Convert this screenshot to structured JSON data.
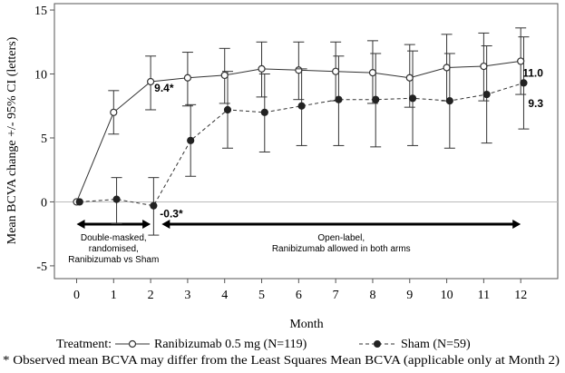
{
  "chart_data": {
    "type": "line",
    "ylabel": "Mean BCVA change +/- 95% CI (letters)",
    "xlabel": "Month",
    "x": [
      0,
      1,
      2,
      3,
      4,
      5,
      6,
      7,
      8,
      9,
      10,
      11,
      12
    ],
    "xlim": [
      -0.6,
      13.0
    ],
    "ylim": [
      -6.0,
      15.5
    ],
    "y_ticks": [
      15,
      10,
      5,
      0,
      -5
    ],
    "zero_line": true,
    "series": [
      {
        "name": "Ranibizumab 0.5 mg (N=119)",
        "style": "solid-open-circle",
        "color": "#333333",
        "x": [
          0,
          1,
          2,
          3,
          4,
          5,
          6,
          7,
          8,
          9,
          10,
          11,
          12
        ],
        "values": [
          0,
          7.0,
          9.4,
          9.7,
          9.9,
          10.4,
          10.3,
          10.2,
          10.1,
          9.7,
          10.5,
          10.6,
          11.0
        ],
        "lower": [
          0,
          5.3,
          7.2,
          7.5,
          7.7,
          8.2,
          8.0,
          7.9,
          7.7,
          7.4,
          7.9,
          7.9,
          8.4
        ],
        "upper": [
          0,
          8.7,
          11.4,
          11.7,
          12.0,
          12.5,
          12.5,
          12.5,
          12.6,
          12.3,
          13.1,
          13.2,
          13.6
        ]
      },
      {
        "name": "Sham (N=59)",
        "style": "dashed-filled-circle",
        "color": "#333333",
        "x": [
          0.08,
          1.08,
          2.08,
          3.08,
          4.08,
          5.08,
          6.08,
          7.08,
          8.08,
          9.08,
          10.08,
          11.08,
          12.08
        ],
        "values": [
          0,
          0.2,
          -0.3,
          4.8,
          7.2,
          7.0,
          7.5,
          8.0,
          8.0,
          8.1,
          7.9,
          8.4,
          9.3
        ],
        "lower": [
          0,
          -1.7,
          -2.6,
          2.0,
          4.2,
          3.9,
          4.4,
          4.4,
          4.3,
          4.4,
          4.2,
          4.6,
          5.7
        ],
        "upper": [
          0,
          1.9,
          1.9,
          7.6,
          10.2,
          10.0,
          10.4,
          11.4,
          11.6,
          11.8,
          11.6,
          12.2,
          12.9
        ]
      }
    ],
    "data_labels": [
      {
        "text": "9.4*",
        "x": 2.1,
        "y": 8.6,
        "anchor": "start"
      },
      {
        "text": "-0.3*",
        "x": 2.25,
        "y": -1.2,
        "anchor": "start"
      },
      {
        "text": "11.0",
        "x": 12.05,
        "y": 9.8,
        "anchor": "start"
      },
      {
        "text": "9.3",
        "x": 12.2,
        "y": 7.4,
        "anchor": "start"
      }
    ],
    "periods": [
      {
        "x_from": 0,
        "x_to": 2,
        "lines": [
          "Double-masked,",
          "randomised,",
          "Ranibizumab vs Sham"
        ]
      },
      {
        "x_from": 2.3,
        "x_to": 12,
        "lines": [
          "Open-label,",
          "Ranibizumab allowed in both arms"
        ]
      }
    ],
    "legend": {
      "prefix": "Treatment:",
      "items": [
        "Ranibizumab 0.5 mg (N=119)",
        "Sham (N=59)"
      ]
    },
    "footnote": "* Observed mean BCVA may differ from the Least Squares Mean BCVA (applicable only at Month 2)"
  }
}
